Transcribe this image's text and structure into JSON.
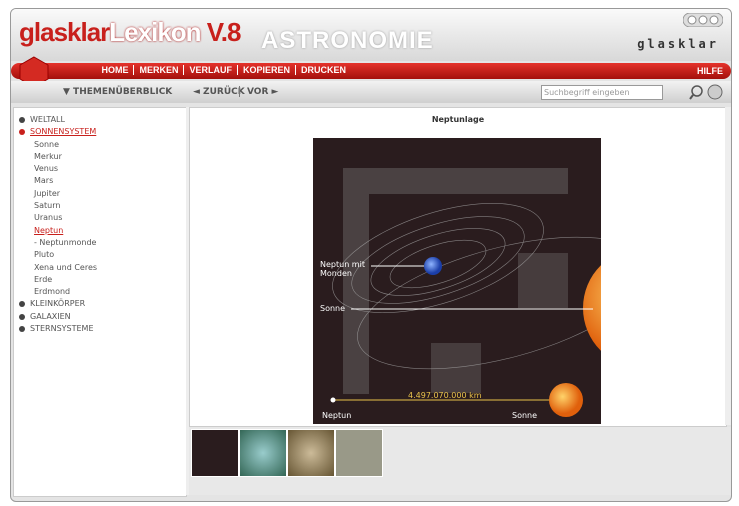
{
  "header": {
    "brand_left": "glasklar",
    "brand_mid": "Lexikon",
    "version": "V.8",
    "subject": "ASTRONOMIE",
    "brand_right": "glasklar"
  },
  "nav": {
    "items": [
      "HOME",
      "MERKEN",
      "VERLAUF",
      "KOPIEREN",
      "DRUCKEN"
    ],
    "help": "HILFE"
  },
  "toolbar": {
    "overview": "▼ THEMENÜBERBLICK",
    "back": "◄ ZURÜCK",
    "forward": "VOR ►",
    "search_placeholder": "Suchbegriff eingeben"
  },
  "sidebar": {
    "sections": [
      {
        "label": "WELTALL"
      },
      {
        "label": "SONNENSYSTEM",
        "children": [
          "Sonne",
          "Merkur",
          "Venus",
          "Mars",
          "Jupiter",
          "Saturn",
          "Uranus",
          "Neptun",
          "- Neptunmonde",
          "Pluto",
          "Xena und Ceres",
          "Erde",
          "Erdmond"
        ]
      },
      {
        "label": "KLEINKÖRPER"
      },
      {
        "label": "GALAXIEN"
      },
      {
        "label": "STERNSYSTEME"
      }
    ]
  },
  "content": {
    "title": "Neptunlage",
    "labels": {
      "neptune_moons": "Neptun mit Monden",
      "sun": "Sonne",
      "distance": "4.497.070.000 km",
      "neptune": "Neptun",
      "sun_bottom": "Sonne"
    }
  }
}
